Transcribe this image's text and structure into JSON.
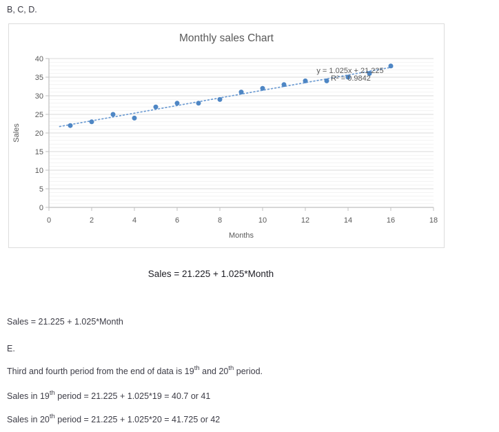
{
  "texts": {
    "heading": "B, C, D.",
    "center_equation": "Sales = 21.225 + 1.025*Month",
    "answer_lines": [
      {
        "parts": [
          {
            "t": "Sales = 21.225 + 1.025*Month"
          }
        ]
      },
      {
        "parts": [
          {
            "t": "E."
          }
        ]
      },
      {
        "parts": [
          {
            "t": "Third and fourth period from the end of data is 19"
          },
          {
            "t": "th",
            "sup": true
          },
          {
            "t": " and 20"
          },
          {
            "t": "th",
            "sup": true
          },
          {
            "t": " period."
          }
        ]
      },
      {
        "parts": [
          {
            "t": "Sales in 19"
          },
          {
            "t": "th",
            "sup": true
          },
          {
            "t": " period = 21.225 + 1.025*19 = 40.7 or 41"
          }
        ]
      },
      {
        "parts": [
          {
            "t": "Sales in 20"
          },
          {
            "t": "th",
            "sup": true
          },
          {
            "t": " period = 21.225 + 1.025*20 = 41.725 or 42"
          }
        ]
      }
    ]
  },
  "chart_data": {
    "type": "scatter",
    "title": "Monthly sales Chart",
    "xlabel": "Months",
    "ylabel": "Sales",
    "x": [
      1,
      2,
      3,
      4,
      5,
      6,
      7,
      8,
      9,
      10,
      11,
      12,
      13,
      14,
      15,
      16
    ],
    "y": [
      22,
      23,
      25,
      24,
      27,
      28,
      28,
      29,
      31,
      32,
      33,
      34,
      34,
      35,
      36,
      38
    ],
    "xlim": [
      0,
      18
    ],
    "ylim": [
      0,
      40
    ],
    "xtick_step": 2,
    "ytick_step": 5,
    "y_minor_step": 1,
    "grid": "horizontal-major-and-minor",
    "legend": "none",
    "trendline": {
      "slope": 1.025,
      "intercept": 21.225,
      "x_start": 0.5,
      "x_end": 16.1,
      "label_line1": "y = 1.025x + 21.225",
      "label_line2": "R² = 0.9842"
    },
    "colors": {
      "marker": "#4e86c4",
      "trendline": "#6c9bd2",
      "grid_major": "#d9d9d9",
      "grid_minor": "#f2f2f2",
      "axis": "#bfbfbf",
      "chart_text": "#595959"
    }
  }
}
